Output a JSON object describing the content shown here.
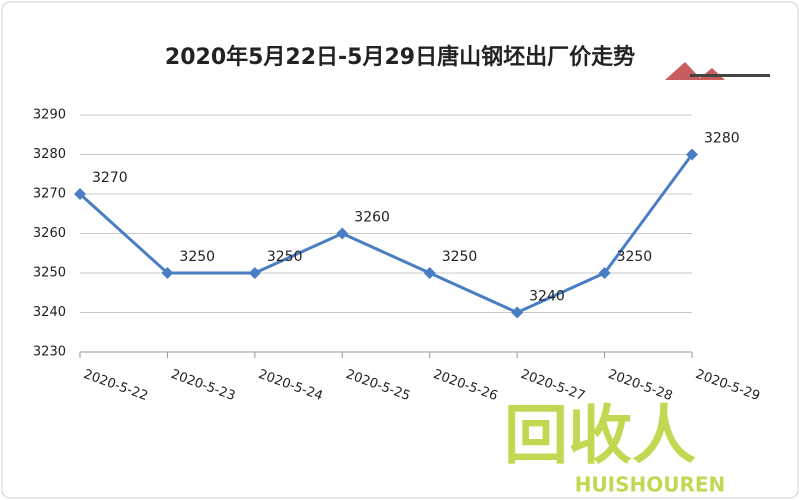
{
  "chart_data": {
    "type": "line",
    "title": "2020年5月22日-5月29日唐山钢坯出厂价走势",
    "categories": [
      "2020-5-22",
      "2020-5-23",
      "2020-5-24",
      "2020-5-25",
      "2020-5-26",
      "2020-5-27",
      "2020-5-28",
      "2020-5-29"
    ],
    "values": [
      3270,
      3250,
      3250,
      3260,
      3250,
      3240,
      3250,
      3280
    ],
    "color": "#4a7ec4",
    "ylim": [
      3230,
      3290
    ],
    "yticks": [
      3230,
      3240,
      3250,
      3260,
      3270,
      3280,
      3290
    ],
    "grid": true,
    "data_labels": true
  },
  "watermark": {
    "text": "回收人",
    "subtext": "HUISHOUREN"
  }
}
